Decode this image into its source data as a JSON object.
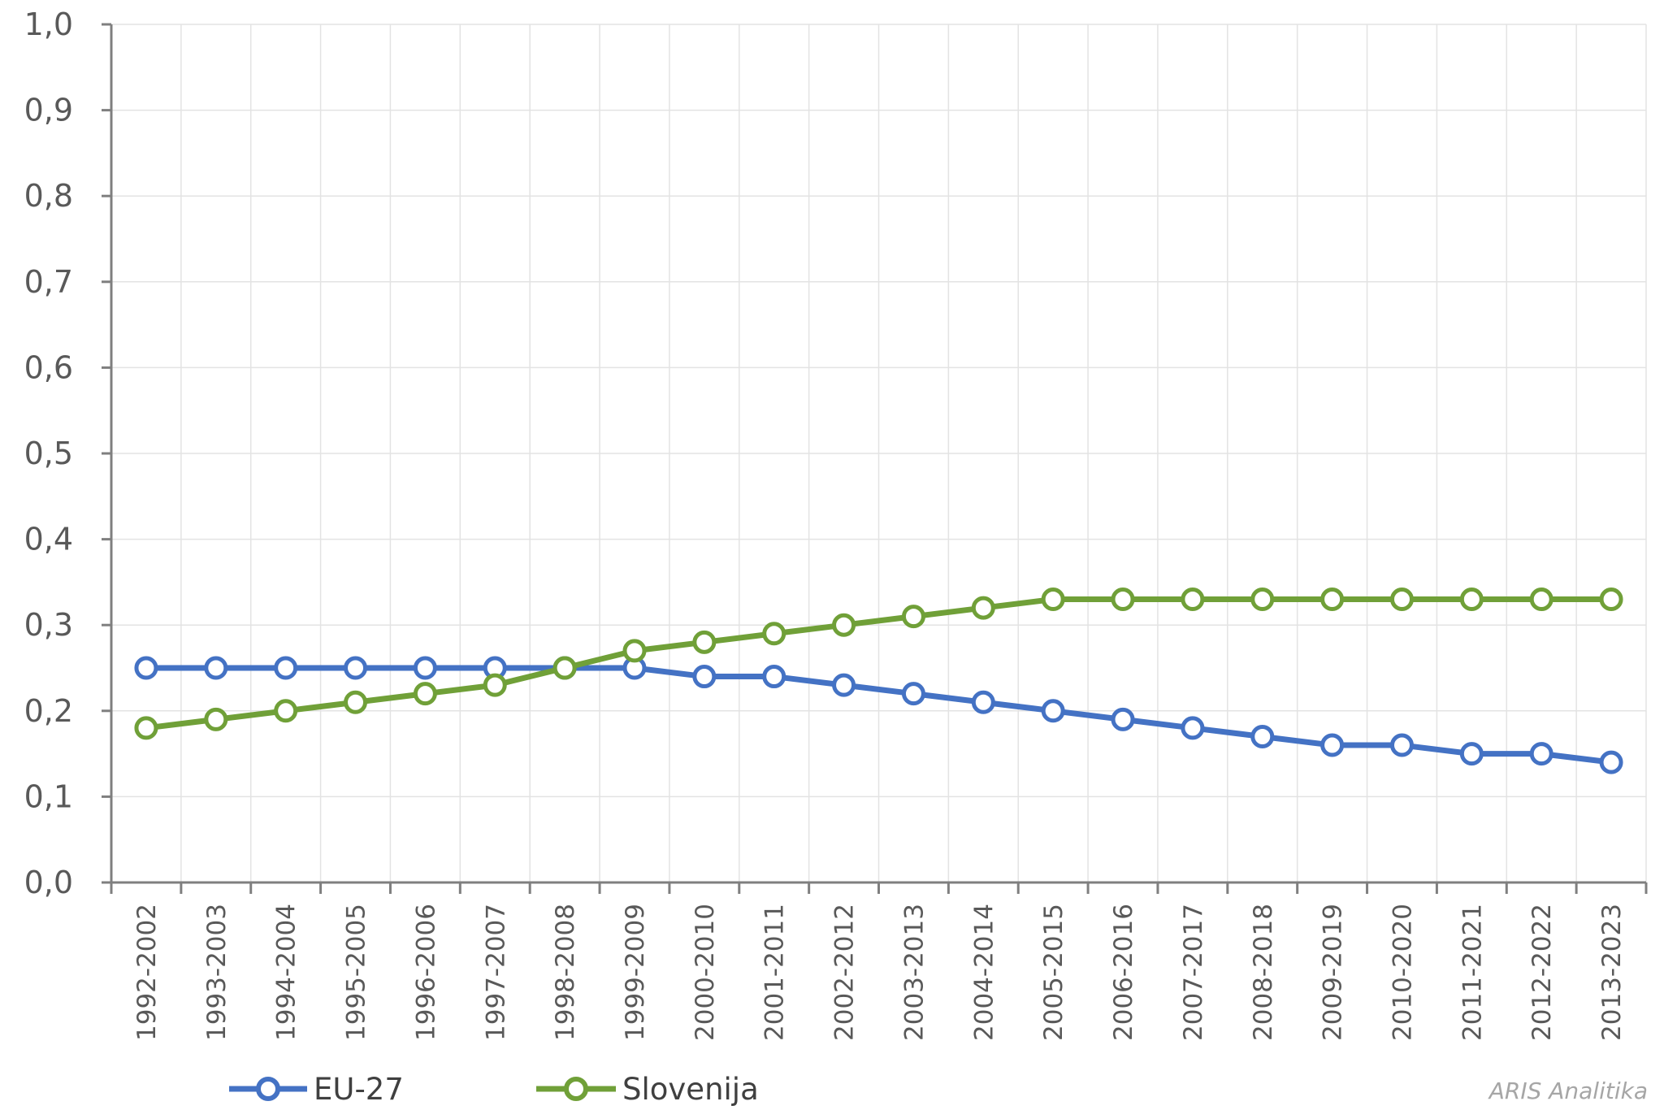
{
  "chart_data": {
    "type": "line",
    "categories": [
      "1992-2002",
      "1993-2003",
      "1994-2004",
      "1995-2005",
      "1996-2006",
      "1997-2007",
      "1998-2008",
      "1999-2009",
      "2000-2010",
      "2001-2011",
      "2002-2012",
      "2003-2013",
      "2004-2014",
      "2005-2015",
      "2006-2016",
      "2007-2017",
      "2008-2018",
      "2009-2019",
      "2010-2020",
      "2011-2021",
      "2012-2022",
      "2013-2023"
    ],
    "series": [
      {
        "name": "EU-27",
        "color": "#4472c4",
        "values": [
          0.25,
          0.25,
          0.25,
          0.25,
          0.25,
          0.25,
          0.25,
          0.25,
          0.24,
          0.24,
          0.23,
          0.22,
          0.21,
          0.2,
          0.19,
          0.18,
          0.17,
          0.16,
          0.16,
          0.15,
          0.15,
          0.14
        ]
      },
      {
        "name": "Slovenija",
        "color": "#70a038",
        "values": [
          0.18,
          0.19,
          0.2,
          0.21,
          0.22,
          0.23,
          0.25,
          0.27,
          0.28,
          0.29,
          0.3,
          0.31,
          0.32,
          0.33,
          0.33,
          0.33,
          0.33,
          0.33,
          0.33,
          0.33,
          0.33,
          0.33
        ]
      }
    ],
    "ylim": [
      0,
      1.0
    ],
    "yticks": [
      "0,0",
      "0,1",
      "0,2",
      "0,3",
      "0,4",
      "0,5",
      "0,6",
      "0,7",
      "0,8",
      "0,9",
      "1,0"
    ],
    "grid": true,
    "legend_position": "bottom-left",
    "credit": "ARIS Analitika"
  }
}
